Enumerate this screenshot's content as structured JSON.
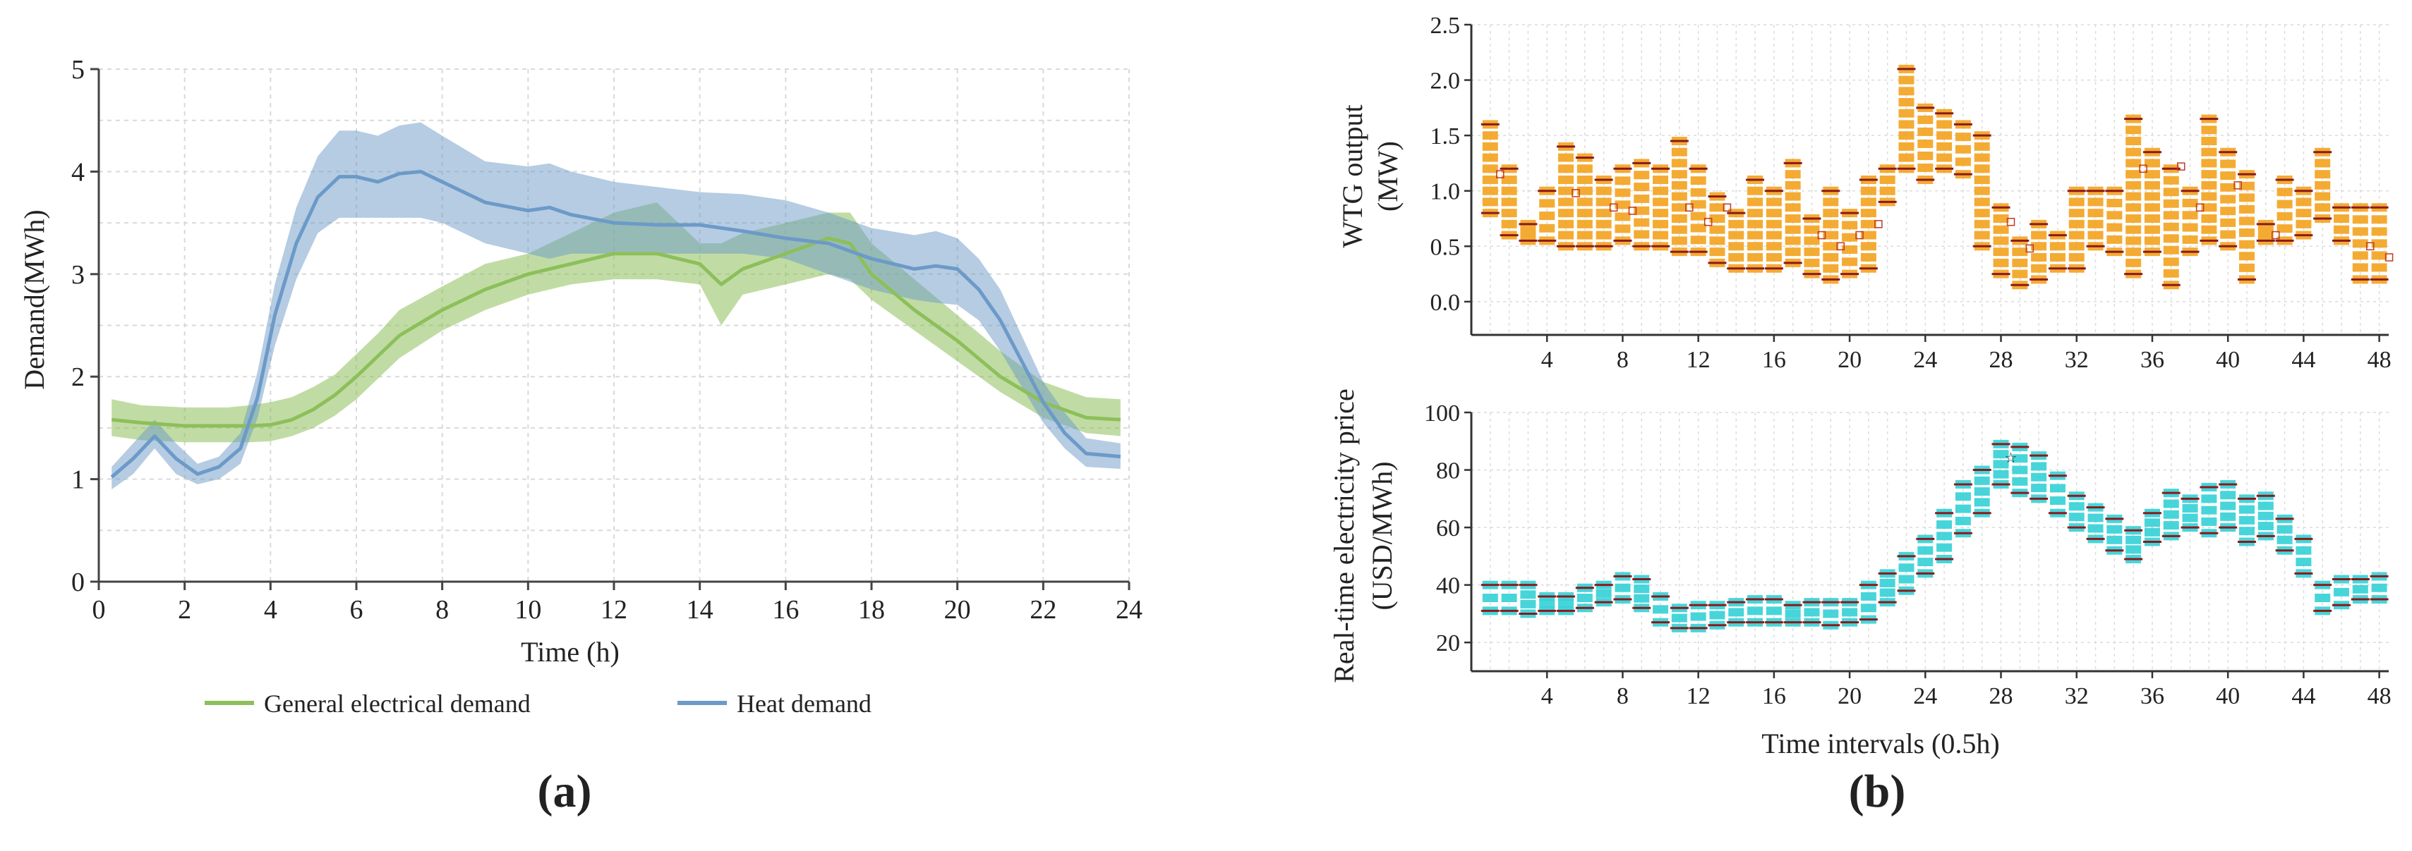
{
  "panel_a": {
    "caption": "(a)",
    "xlabel": "Time (h)",
    "ylabel": "Demand(MWh)",
    "x_ticks": [
      "0",
      "2",
      "4",
      "6",
      "8",
      "10",
      "12",
      "14",
      "16",
      "18",
      "20",
      "22",
      "24"
    ],
    "y_ticks": [
      "0",
      "1",
      "2",
      "3",
      "4",
      "5"
    ],
    "legend": [
      "General electrical demand",
      "Heat demand"
    ]
  },
  "panel_b": {
    "caption": "(b)",
    "top_ylabel_line1": "WTG output",
    "top_ylabel_line2": "(MW)",
    "top_y_ticks": [
      "0.0",
      "0.5",
      "1.0",
      "1.5",
      "2.0",
      "2.5"
    ],
    "bottom_ylabel_line1": "Real-time electricity price",
    "bottom_ylabel_line2": "(USD/MWh)",
    "bottom_y_ticks": [
      "20",
      "40",
      "60",
      "80",
      "100"
    ],
    "x_ticks": [
      "4",
      "8",
      "12",
      "16",
      "20",
      "24",
      "28",
      "32",
      "36",
      "40",
      "44",
      "48"
    ],
    "xlabel": "Time intervals (0.5h)"
  },
  "chart_data": [
    {
      "type": "area",
      "xlabel": "Time (h)",
      "ylabel": "Demand(MWh)",
      "xlim": [
        0,
        24
      ],
      "ylim": [
        0,
        5
      ],
      "grid": true,
      "legend_position": "bottom",
      "series": [
        {
          "name": "General electrical demand",
          "color": "#8dbf5a",
          "x": [
            0.3,
            1,
            2,
            3,
            3.5,
            4,
            4.5,
            5,
            5.5,
            6,
            6.5,
            7,
            8,
            9,
            10,
            11,
            12,
            13,
            14,
            14.5,
            15,
            16,
            17,
            17.5,
            18,
            19,
            20,
            21,
            22,
            23,
            23.8
          ],
          "mean": [
            1.58,
            1.55,
            1.52,
            1.52,
            1.52,
            1.53,
            1.58,
            1.68,
            1.82,
            2.0,
            2.2,
            2.4,
            2.65,
            2.85,
            3.0,
            3.1,
            3.2,
            3.2,
            3.1,
            2.9,
            3.05,
            3.2,
            3.35,
            3.3,
            3.0,
            2.65,
            2.35,
            2.0,
            1.75,
            1.6,
            1.58
          ],
          "lower": [
            1.42,
            1.38,
            1.36,
            1.36,
            1.36,
            1.37,
            1.42,
            1.5,
            1.62,
            1.78,
            1.98,
            2.18,
            2.45,
            2.65,
            2.8,
            2.9,
            2.95,
            2.95,
            2.9,
            2.5,
            2.8,
            2.9,
            3.0,
            2.95,
            2.75,
            2.45,
            2.15,
            1.85,
            1.6,
            1.45,
            1.42
          ],
          "upper": [
            1.78,
            1.72,
            1.7,
            1.7,
            1.72,
            1.75,
            1.8,
            1.9,
            2.02,
            2.22,
            2.42,
            2.65,
            2.88,
            3.1,
            3.2,
            3.4,
            3.6,
            3.7,
            3.3,
            3.3,
            3.4,
            3.5,
            3.6,
            3.6,
            3.3,
            2.95,
            2.6,
            2.25,
            1.95,
            1.8,
            1.78
          ]
        },
        {
          "name": "Heat demand",
          "color": "#6c9ac8",
          "x": [
            0.3,
            0.8,
            1.3,
            1.8,
            2.3,
            2.8,
            3.3,
            3.7,
            4.1,
            4.6,
            5.1,
            5.6,
            6,
            6.5,
            7,
            7.5,
            8,
            9,
            10,
            10.5,
            11,
            12,
            13,
            14,
            15,
            16,
            17,
            18,
            19,
            19.5,
            20,
            20.5,
            21,
            21.5,
            22,
            22.5,
            23,
            23.8
          ],
          "mean": [
            1.02,
            1.2,
            1.42,
            1.2,
            1.05,
            1.12,
            1.3,
            1.8,
            2.6,
            3.3,
            3.75,
            3.95,
            3.95,
            3.9,
            3.98,
            4.0,
            3.9,
            3.7,
            3.62,
            3.65,
            3.58,
            3.5,
            3.48,
            3.48,
            3.42,
            3.35,
            3.3,
            3.15,
            3.05,
            3.08,
            3.05,
            2.85,
            2.55,
            2.15,
            1.75,
            1.45,
            1.25,
            1.22
          ],
          "lower": [
            0.9,
            1.05,
            1.3,
            1.05,
            0.95,
            1.0,
            1.15,
            1.6,
            2.3,
            2.95,
            3.4,
            3.55,
            3.55,
            3.55,
            3.55,
            3.55,
            3.5,
            3.3,
            3.2,
            3.15,
            3.2,
            3.2,
            3.2,
            3.2,
            3.2,
            3.15,
            3.0,
            2.85,
            2.75,
            2.72,
            2.7,
            2.55,
            2.25,
            1.9,
            1.55,
            1.3,
            1.12,
            1.1
          ],
          "upper": [
            1.12,
            1.35,
            1.58,
            1.35,
            1.15,
            1.22,
            1.45,
            2.05,
            2.9,
            3.65,
            4.15,
            4.4,
            4.4,
            4.35,
            4.45,
            4.48,
            4.35,
            4.1,
            4.05,
            4.08,
            4.0,
            3.9,
            3.85,
            3.8,
            3.78,
            3.72,
            3.6,
            3.45,
            3.38,
            3.42,
            3.35,
            3.15,
            2.85,
            2.4,
            1.95,
            1.65,
            1.4,
            1.35
          ]
        }
      ]
    },
    {
      "type": "scatter",
      "xlabel": "",
      "ylabel": "WTG output (MW)",
      "xlim": [
        0,
        48.5
      ],
      "ylim": [
        -0.3,
        2.5
      ],
      "grid": true,
      "color": "#f3a21d",
      "x": [
        1,
        2,
        3,
        4,
        5,
        6,
        7,
        8,
        9,
        10,
        11,
        12,
        13,
        14,
        15,
        16,
        17,
        18,
        19,
        20,
        21,
        22,
        23,
        24,
        25,
        26,
        27,
        28,
        29,
        30,
        31,
        32,
        33,
        34,
        35,
        36,
        37,
        38,
        39,
        40,
        41,
        42,
        43,
        44,
        45,
        46,
        47,
        48
      ],
      "ranges": [
        [
          0.8,
          1.6
        ],
        [
          0.6,
          1.2
        ],
        [
          0.55,
          0.7
        ],
        [
          0.55,
          1.0
        ],
        [
          0.5,
          1.4
        ],
        [
          0.5,
          1.3
        ],
        [
          0.5,
          1.1
        ],
        [
          0.55,
          1.2
        ],
        [
          0.5,
          1.25
        ],
        [
          0.5,
          1.2
        ],
        [
          0.45,
          1.45
        ],
        [
          0.45,
          1.2
        ],
        [
          0.35,
          0.95
        ],
        [
          0.3,
          0.8
        ],
        [
          0.3,
          1.1
        ],
        [
          0.3,
          1.0
        ],
        [
          0.35,
          1.25
        ],
        [
          0.25,
          0.75
        ],
        [
          0.2,
          1.0
        ],
        [
          0.25,
          0.8
        ],
        [
          0.3,
          1.1
        ],
        [
          0.9,
          1.2
        ],
        [
          1.2,
          2.1
        ],
        [
          1.1,
          1.75
        ],
        [
          1.2,
          1.7
        ],
        [
          1.15,
          1.6
        ],
        [
          0.5,
          1.5
        ],
        [
          0.25,
          0.85
        ],
        [
          0.15,
          0.55
        ],
        [
          0.2,
          0.7
        ],
        [
          0.3,
          0.6
        ],
        [
          0.3,
          1.0
        ],
        [
          0.5,
          1.0
        ],
        [
          0.45,
          1.0
        ],
        [
          0.25,
          1.65
        ],
        [
          0.45,
          1.35
        ],
        [
          0.15,
          1.2
        ],
        [
          0.45,
          1.0
        ],
        [
          0.55,
          1.65
        ],
        [
          0.5,
          1.35
        ],
        [
          0.2,
          1.15
        ],
        [
          0.55,
          0.7
        ],
        [
          0.55,
          1.1
        ],
        [
          0.6,
          1.0
        ],
        [
          0.75,
          1.35
        ],
        [
          0.55,
          0.85
        ],
        [
          0.2,
          0.85
        ],
        [
          0.2,
          0.85
        ]
      ],
      "markers": [
        [
          1,
          1.15
        ],
        [
          5,
          0.98
        ],
        [
          7,
          0.85
        ],
        [
          8,
          0.82
        ],
        [
          11,
          0.85
        ],
        [
          12,
          0.72
        ],
        [
          13,
          0.85
        ],
        [
          18,
          0.6
        ],
        [
          19,
          0.5
        ],
        [
          20,
          0.6
        ],
        [
          21,
          0.7
        ],
        [
          28,
          0.72
        ],
        [
          29,
          0.48
        ],
        [
          35,
          1.2
        ],
        [
          37,
          1.22
        ],
        [
          38,
          0.85
        ],
        [
          40,
          1.05
        ],
        [
          42,
          0.6
        ],
        [
          47,
          0.5
        ],
        [
          48,
          0.4
        ]
      ]
    },
    {
      "type": "scatter",
      "xlabel": "Time intervals (0.5h)",
      "ylabel": "Real-time electricity price (USD/MWh)",
      "xlim": [
        0,
        48.5
      ],
      "ylim": [
        10,
        100
      ],
      "grid": true,
      "color": "#33d0d6",
      "x": [
        1,
        2,
        3,
        4,
        5,
        6,
        7,
        8,
        9,
        10,
        11,
        12,
        13,
        14,
        15,
        16,
        17,
        18,
        19,
        20,
        21,
        22,
        23,
        24,
        25,
        26,
        27,
        28,
        29,
        30,
        31,
        32,
        33,
        34,
        35,
        36,
        37,
        38,
        39,
        40,
        41,
        42,
        43,
        44,
        45,
        46,
        47,
        48
      ],
      "ranges": [
        [
          31,
          40
        ],
        [
          31,
          40
        ],
        [
          30,
          40
        ],
        [
          31,
          36
        ],
        [
          31,
          36
        ],
        [
          32,
          39
        ],
        [
          34,
          40
        ],
        [
          35,
          43
        ],
        [
          32,
          42
        ],
        [
          27,
          36
        ],
        [
          25,
          32
        ],
        [
          25,
          33
        ],
        [
          26,
          33
        ],
        [
          27,
          34
        ],
        [
          27,
          35
        ],
        [
          27,
          35
        ],
        [
          27,
          33
        ],
        [
          27,
          34
        ],
        [
          26,
          34
        ],
        [
          27,
          34
        ],
        [
          28,
          40
        ],
        [
          34,
          44
        ],
        [
          38,
          50
        ],
        [
          44,
          56
        ],
        [
          49,
          65
        ],
        [
          58,
          75
        ],
        [
          65,
          80
        ],
        [
          75,
          89
        ],
        [
          72,
          88
        ],
        [
          70,
          85
        ],
        [
          65,
          78
        ],
        [
          60,
          71
        ],
        [
          56,
          67
        ],
        [
          52,
          63
        ],
        [
          49,
          59
        ],
        [
          55,
          65
        ],
        [
          57,
          72
        ],
        [
          60,
          70
        ],
        [
          58,
          74
        ],
        [
          60,
          75
        ],
        [
          55,
          70
        ],
        [
          57,
          71
        ],
        [
          52,
          63
        ],
        [
          44,
          56
        ],
        [
          31,
          40
        ],
        [
          33,
          42
        ],
        [
          35,
          42
        ],
        [
          35,
          43
        ]
      ],
      "markers": [
        [
          28,
          84
        ]
      ]
    }
  ]
}
